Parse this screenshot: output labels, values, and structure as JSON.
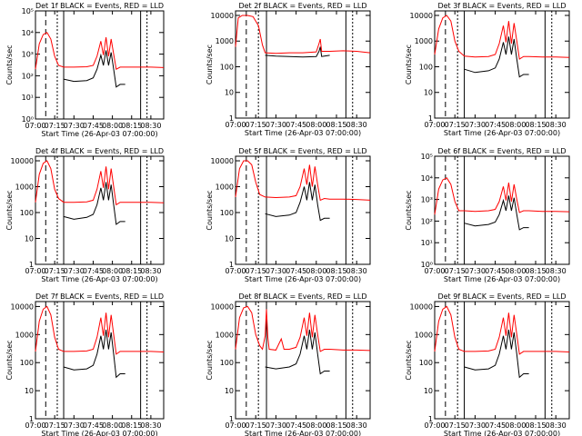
{
  "colors": {
    "events": "#000000",
    "lld": "#ff0000",
    "axis": "#000000",
    "background": "#ffffff"
  },
  "shared": {
    "xlabel": "Start Time (26-Apr-03 07:00:00)",
    "ylabel": "Counts/sec",
    "xticks": [
      "07:00",
      "07:15",
      "07:30",
      "07:45",
      "08:00",
      "08:15",
      "08:30"
    ],
    "xlim_min": [
      0,
      100
    ],
    "event_lines_min": {
      "dashed": 8,
      "dotted": 17,
      "solid": 22,
      "solid_right": 82,
      "dotted_right": 87
    }
  },
  "chart_data": [
    {
      "type": "line",
      "title": "Det 1f BLACK = Events, RED = LLD",
      "scale": "log",
      "ylim": [
        1,
        100000
      ],
      "yticks": [
        "10⁰",
        "10¹",
        "10²",
        "10³",
        "10⁴",
        "10⁵"
      ],
      "solid_min": 22,
      "series": [
        {
          "name": "Events",
          "color": "#000000",
          "x": [
            22,
            30,
            40,
            45,
            48,
            51,
            53,
            55,
            57,
            59,
            61,
            63,
            66,
            70
          ],
          "y": [
            70,
            55,
            60,
            80,
            200,
            900,
            300,
            1500,
            300,
            1200,
            200,
            30,
            40,
            40
          ]
        },
        {
          "name": "LLD",
          "color": "#ff0000",
          "x": [
            0,
            3,
            6,
            9,
            12,
            15,
            18,
            22,
            30,
            40,
            45,
            48,
            51,
            53,
            55,
            57,
            59,
            61,
            63,
            66,
            70,
            80,
            90,
            100
          ],
          "y": [
            200,
            3000,
            8000,
            10000,
            5000,
            800,
            300,
            250,
            250,
            260,
            300,
            800,
            4000,
            900,
            6000,
            800,
            5000,
            1000,
            200,
            250,
            250,
            250,
            250,
            240
          ]
        }
      ]
    },
    {
      "type": "line",
      "title": "Det 2f BLACK = Events, RED = LLD",
      "scale": "log",
      "ylim": [
        1,
        15000
      ],
      "yticks": [
        "1",
        "10",
        "100",
        "1000",
        "10000"
      ],
      "solid_min": 23,
      "series": [
        {
          "name": "Events",
          "color": "#000000",
          "x": [
            22,
            30,
            40,
            50,
            60,
            62,
            63,
            64,
            66,
            70
          ],
          "y": [
            280,
            260,
            250,
            240,
            250,
            400,
            600,
            250,
            260,
            280
          ]
        },
        {
          "name": "LLD",
          "color": "#ff0000",
          "x": [
            0,
            2,
            5,
            9,
            13,
            17,
            20,
            22,
            30,
            40,
            50,
            60,
            62,
            63,
            64,
            70,
            80,
            90,
            100
          ],
          "y": [
            600,
            8000,
            10000,
            10000,
            9000,
            4000,
            700,
            350,
            330,
            350,
            350,
            380,
            800,
            1200,
            400,
            400,
            420,
            400,
            350
          ]
        }
      ]
    },
    {
      "type": "line",
      "title": "Det 3f BLACK = Events, RED = LLD",
      "scale": "log",
      "ylim": [
        1,
        15000
      ],
      "yticks": [
        "1",
        "10",
        "100",
        "1000",
        "10000"
      ],
      "solid_min": 22,
      "series": [
        {
          "name": "Events",
          "color": "#000000",
          "x": [
            22,
            30,
            40,
            45,
            48,
            51,
            53,
            55,
            57,
            59,
            61,
            63,
            66,
            70
          ],
          "y": [
            80,
            60,
            70,
            90,
            200,
            900,
            300,
            1500,
            300,
            1200,
            200,
            40,
            50,
            50
          ]
        },
        {
          "name": "LLD",
          "color": "#ff0000",
          "x": [
            0,
            3,
            6,
            9,
            12,
            15,
            18,
            22,
            30,
            40,
            45,
            48,
            51,
            53,
            55,
            57,
            59,
            61,
            63,
            66,
            70,
            80,
            90,
            100
          ],
          "y": [
            300,
            3000,
            8000,
            10000,
            6000,
            1000,
            400,
            260,
            240,
            250,
            300,
            800,
            4000,
            900,
            6000,
            800,
            5000,
            1000,
            200,
            250,
            250,
            240,
            240,
            230
          ]
        }
      ]
    },
    {
      "type": "line",
      "title": "Det 4f BLACK = Events, RED = LLD",
      "scale": "log",
      "ylim": [
        1,
        15000
      ],
      "yticks": [
        "1",
        "10",
        "100",
        "1000",
        "10000"
      ],
      "solid_min": 22,
      "series": [
        {
          "name": "Events",
          "color": "#000000",
          "x": [
            22,
            30,
            40,
            45,
            48,
            51,
            53,
            55,
            57,
            59,
            61,
            63,
            66,
            70
          ],
          "y": [
            70,
            55,
            65,
            85,
            200,
            900,
            300,
            1500,
            300,
            1200,
            200,
            35,
            45,
            45
          ]
        },
        {
          "name": "LLD",
          "color": "#ff0000",
          "x": [
            0,
            3,
            6,
            9,
            12,
            15,
            18,
            22,
            30,
            40,
            45,
            48,
            51,
            53,
            55,
            57,
            59,
            61,
            63,
            66,
            70,
            80,
            90,
            100
          ],
          "y": [
            250,
            3000,
            8000,
            10000,
            5000,
            800,
            350,
            250,
            250,
            260,
            300,
            800,
            4000,
            900,
            6000,
            800,
            5000,
            1000,
            200,
            250,
            250,
            250,
            250,
            240
          ]
        }
      ]
    },
    {
      "type": "line",
      "title": "Det 5f BLACK = Events, RED = LLD",
      "scale": "log",
      "ylim": [
        1,
        15000
      ],
      "yticks": [
        "1",
        "10",
        "100",
        "1000",
        "10000"
      ],
      "solid_min": 23,
      "series": [
        {
          "name": "Events",
          "color": "#000000",
          "x": [
            22,
            30,
            40,
            45,
            48,
            51,
            53,
            55,
            57,
            59,
            61,
            63,
            66,
            70
          ],
          "y": [
            90,
            70,
            80,
            100,
            250,
            1000,
            300,
            1500,
            300,
            1200,
            200,
            50,
            60,
            60
          ]
        },
        {
          "name": "LLD",
          "color": "#ff0000",
          "x": [
            0,
            3,
            6,
            9,
            12,
            15,
            18,
            22,
            30,
            40,
            45,
            48,
            51,
            53,
            55,
            57,
            59,
            61,
            63,
            66,
            70,
            80,
            90,
            100
          ],
          "y": [
            400,
            5000,
            10000,
            10000,
            7000,
            1500,
            500,
            400,
            380,
            400,
            450,
            1000,
            5000,
            1200,
            7000,
            1000,
            6000,
            1200,
            300,
            350,
            330,
            330,
            320,
            300
          ]
        }
      ]
    },
    {
      "type": "line",
      "title": "Det 6f BLACK = Events, RED = LLD",
      "scale": "log",
      "ylim": [
        1,
        100000
      ],
      "yticks": [
        "10⁰",
        "10¹",
        "10²",
        "10³",
        "10⁴",
        "10⁵"
      ],
      "solid_min": 22,
      "series": [
        {
          "name": "Events",
          "color": "#000000",
          "x": [
            22,
            30,
            40,
            45,
            48,
            51,
            53,
            55,
            57,
            59,
            61,
            63,
            66,
            70
          ],
          "y": [
            80,
            60,
            70,
            90,
            200,
            900,
            300,
            1500,
            300,
            1200,
            200,
            40,
            50,
            50
          ]
        },
        {
          "name": "LLD",
          "color": "#ff0000",
          "x": [
            0,
            3,
            6,
            9,
            12,
            15,
            18,
            22,
            30,
            40,
            45,
            48,
            51,
            53,
            55,
            57,
            59,
            61,
            63,
            66,
            70,
            80,
            90,
            100
          ],
          "y": [
            200,
            3000,
            8000,
            10000,
            5000,
            800,
            300,
            300,
            280,
            300,
            350,
            800,
            4000,
            900,
            6000,
            800,
            5000,
            1000,
            250,
            300,
            300,
            280,
            280,
            270
          ]
        }
      ]
    },
    {
      "type": "line",
      "title": "Det 7f BLACK = Events, RED = LLD",
      "scale": "log",
      "ylim": [
        1,
        15000
      ],
      "yticks": [
        "1",
        "10",
        "100",
        "1000",
        "10000"
      ],
      "solid_min": 22,
      "series": [
        {
          "name": "Events",
          "color": "#000000",
          "x": [
            22,
            30,
            40,
            45,
            48,
            51,
            53,
            55,
            57,
            59,
            61,
            63,
            66,
            70
          ],
          "y": [
            70,
            55,
            60,
            80,
            200,
            900,
            300,
            1500,
            300,
            1200,
            200,
            30,
            40,
            40
          ]
        },
        {
          "name": "LLD",
          "color": "#ff0000",
          "x": [
            0,
            3,
            6,
            9,
            12,
            15,
            18,
            22,
            30,
            40,
            45,
            48,
            51,
            53,
            55,
            57,
            59,
            61,
            63,
            66,
            70,
            80,
            90,
            100
          ],
          "y": [
            250,
            3000,
            8000,
            10000,
            5000,
            800,
            300,
            250,
            250,
            260,
            300,
            800,
            4000,
            900,
            6000,
            800,
            5000,
            1000,
            200,
            250,
            250,
            250,
            250,
            240
          ]
        }
      ]
    },
    {
      "type": "line",
      "title": "Det 8f BLACK = Events, RED = LLD",
      "scale": "log",
      "ylim": [
        1,
        15000
      ],
      "yticks": [
        "1",
        "10",
        "100",
        "1000",
        "10000"
      ],
      "solid_min": 23,
      "series": [
        {
          "name": "Events",
          "color": "#000000",
          "x": [
            22,
            30,
            40,
            45,
            48,
            51,
            53,
            55,
            57,
            59,
            61,
            63,
            66,
            70
          ],
          "y": [
            70,
            60,
            70,
            90,
            200,
            900,
            300,
            1500,
            300,
            1200,
            200,
            40,
            50,
            50
          ]
        },
        {
          "name": "LLD",
          "color": "#ff0000",
          "x": [
            0,
            3,
            6,
            9,
            12,
            15,
            18,
            20,
            22,
            23,
            24,
            25,
            30,
            34,
            36,
            40,
            45,
            48,
            51,
            53,
            55,
            57,
            59,
            61,
            63,
            66,
            70,
            80,
            90,
            100
          ],
          "y": [
            300,
            4000,
            9000,
            10000,
            6000,
            1000,
            400,
            300,
            900,
            8000,
            800,
            300,
            280,
            700,
            300,
            300,
            350,
            800,
            4000,
            900,
            6000,
            800,
            5000,
            1000,
            250,
            300,
            300,
            280,
            280,
            270
          ]
        }
      ]
    },
    {
      "type": "line",
      "title": "Det 9f BLACK = Events, RED = LLD",
      "scale": "log",
      "ylim": [
        1,
        15000
      ],
      "yticks": [
        "1",
        "10",
        "100",
        "1000",
        "10000"
      ],
      "solid_min": 22,
      "series": [
        {
          "name": "Events",
          "color": "#000000",
          "x": [
            22,
            30,
            40,
            45,
            48,
            51,
            53,
            55,
            57,
            59,
            61,
            63,
            66,
            70
          ],
          "y": [
            70,
            55,
            60,
            80,
            200,
            900,
            300,
            1500,
            300,
            1200,
            200,
            30,
            40,
            40
          ]
        },
        {
          "name": "LLD",
          "color": "#ff0000",
          "x": [
            0,
            3,
            6,
            9,
            12,
            15,
            18,
            22,
            30,
            40,
            45,
            48,
            51,
            53,
            55,
            57,
            59,
            61,
            63,
            66,
            70,
            80,
            90,
            100
          ],
          "y": [
            250,
            3000,
            8000,
            10000,
            5000,
            800,
            300,
            250,
            250,
            260,
            300,
            800,
            4000,
            900,
            6000,
            800,
            5000,
            1000,
            200,
            250,
            250,
            250,
            250,
            240
          ]
        }
      ]
    }
  ]
}
